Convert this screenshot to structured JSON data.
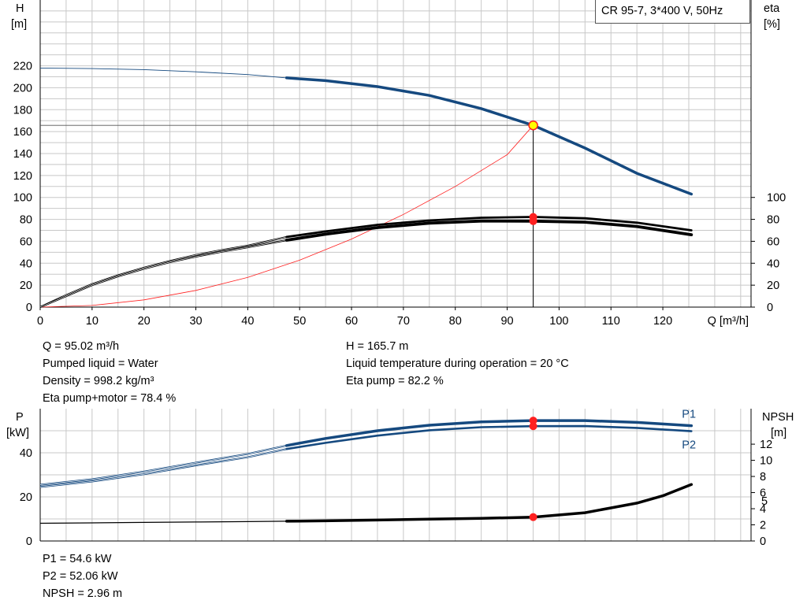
{
  "title": "CR 95-7, 3*400 V, 50Hz",
  "colors": {
    "blue": "#15497f",
    "black": "#000000",
    "red": "#ff2020",
    "grid": "#c8c8c8",
    "operating_point_fill": "#ffff00"
  },
  "info_top": {
    "left": [
      "Q = 95.02 m³/h",
      "Pumped liquid = Water",
      "Density = 998.2 kg/m³",
      "Eta pump+motor = 78.4 %"
    ],
    "right": [
      "H = 165.7 m",
      "Liquid temperature during operation = 20 °C",
      "Eta pump = 82.2 %"
    ]
  },
  "info_bottom": [
    "P1 = 54.6 kW",
    "P2 = 52.06 kW",
    "NPSH = 2.96 m"
  ],
  "chart_data": [
    {
      "type": "line",
      "name": "head-efficiency",
      "x_axis": {
        "label": "Q [m³/h]",
        "min": 0,
        "max": 137,
        "ticks": [
          0,
          10,
          20,
          30,
          40,
          50,
          60,
          70,
          80,
          90,
          100,
          110,
          120
        ]
      },
      "y_left": {
        "label_lines": [
          "H",
          "[m]"
        ],
        "min": 0,
        "max": 280,
        "ticks": [
          0,
          20,
          40,
          60,
          80,
          100,
          120,
          140,
          160,
          180,
          200,
          220
        ]
      },
      "y_right": {
        "label_lines": [
          "eta",
          "[%]"
        ],
        "min": 0,
        "max": 280,
        "ticks": [
          0,
          20,
          40,
          60,
          80,
          100
        ]
      },
      "grid": true,
      "series": [
        {
          "name": "H",
          "curve_thin": [
            [
              0,
              218
            ],
            [
              10,
              217.5
            ],
            [
              20,
              216.5
            ],
            [
              30,
              214.5
            ],
            [
              40,
              212
            ],
            [
              47.5,
              209
            ]
          ],
          "curve_thick": [
            [
              47.5,
              209
            ],
            [
              55,
              206.5
            ],
            [
              65,
              201
            ],
            [
              75,
              193
            ],
            [
              85,
              181
            ],
            [
              95,
              165.7
            ],
            [
              105,
              145
            ],
            [
              115,
              122
            ],
            [
              125.5,
              103
            ]
          ]
        },
        {
          "name": "Eta pump",
          "curve_thin": [
            [
              0,
              0
            ],
            [
              5,
              11
            ],
            [
              10,
              21
            ],
            [
              15,
              29
            ],
            [
              20,
              36
            ],
            [
              25,
              42
            ],
            [
              30,
              47.5
            ],
            [
              35,
              52
            ],
            [
              40,
              56
            ],
            [
              47.5,
              64
            ]
          ],
          "curve_thick": [
            [
              47.5,
              64
            ],
            [
              55,
              69
            ],
            [
              65,
              75
            ],
            [
              75,
              79
            ],
            [
              85,
              81.5
            ],
            [
              95,
              82.2
            ],
            [
              105,
              81
            ],
            [
              115,
              77
            ],
            [
              125.5,
              70
            ]
          ]
        },
        {
          "name": "Eta pump+motor",
          "curve_thin": [
            [
              0,
              0
            ],
            [
              5,
              10
            ],
            [
              10,
              20
            ],
            [
              15,
              28
            ],
            [
              20,
              35
            ],
            [
              25,
              41
            ],
            [
              30,
              46
            ],
            [
              35,
              50.5
            ],
            [
              40,
              54.5
            ],
            [
              47.5,
              61
            ]
          ],
          "curve_thick": [
            [
              47.5,
              61
            ],
            [
              55,
              66.5
            ],
            [
              65,
              72.5
            ],
            [
              75,
              76.5
            ],
            [
              85,
              78.5
            ],
            [
              95,
              78.4
            ],
            [
              105,
              77.5
            ],
            [
              115,
              73.5
            ],
            [
              125.5,
              66
            ]
          ]
        },
        {
          "name": "System curve",
          "points": [
            [
              0,
              0
            ],
            [
              10,
              1.5
            ],
            [
              20,
              6.6
            ],
            [
              30,
              15.2
            ],
            [
              40,
              27.1
            ],
            [
              50,
              42.8
            ],
            [
              60,
              62
            ],
            [
              70,
              84.5
            ],
            [
              80,
              110
            ],
            [
              90,
              139
            ],
            [
              95.02,
              165.7
            ]
          ]
        }
      ],
      "operating_point": {
        "Q": 95.02,
        "H": 165.7,
        "eta_pump": 82.2,
        "eta_pump_motor": 78.4
      }
    },
    {
      "type": "line",
      "name": "power-npsh",
      "x_axis": {
        "min": 0,
        "max": 137
      },
      "y_left": {
        "label_lines": [
          "P",
          "[kW]"
        ],
        "min": 0,
        "max": 60,
        "ticks": [
          0,
          20,
          40
        ]
      },
      "y_right": {
        "label_lines": [
          "NPSH",
          "[m]"
        ],
        "min": 0,
        "max": 16.4,
        "ticks": [
          0,
          2,
          4,
          6,
          8,
          10,
          12
        ],
        "minor_ticks": [
          5
        ]
      },
      "grid": true,
      "series": [
        {
          "name": "P1",
          "curve_thin": [
            [
              0,
              25.5
            ],
            [
              10,
              28
            ],
            [
              20,
              31.5
            ],
            [
              30,
              35.5
            ],
            [
              40,
              39.5
            ],
            [
              47.5,
              43.3
            ]
          ],
          "curve_thick": [
            [
              47.5,
              43.3
            ],
            [
              55,
              46.5
            ],
            [
              65,
              50
            ],
            [
              75,
              52.5
            ],
            [
              85,
              54
            ],
            [
              95,
              54.6
            ],
            [
              105,
              54.6
            ],
            [
              115,
              53.8
            ],
            [
              125.5,
              52.3
            ]
          ]
        },
        {
          "name": "P2",
          "curve_thin": [
            [
              0,
              24.5
            ],
            [
              10,
              27
            ],
            [
              20,
              30.3
            ],
            [
              30,
              34.3
            ],
            [
              40,
              38
            ],
            [
              47.5,
              41.7
            ]
          ],
          "curve_thick": [
            [
              47.5,
              41.7
            ],
            [
              55,
              44.5
            ],
            [
              65,
              47.8
            ],
            [
              75,
              50.2
            ],
            [
              85,
              51.6
            ],
            [
              95,
              52.06
            ],
            [
              105,
              52.1
            ],
            [
              115,
              51.3
            ],
            [
              125.5,
              49.8
            ]
          ]
        },
        {
          "name": "NPSH",
          "curve_thin": [
            [
              0,
              2.2
            ],
            [
              10,
              2.25
            ],
            [
              20,
              2.3
            ],
            [
              30,
              2.35
            ],
            [
              40,
              2.4
            ],
            [
              47.5,
              2.45
            ]
          ],
          "curve_thick": [
            [
              47.5,
              2.45
            ],
            [
              55,
              2.5
            ],
            [
              65,
              2.6
            ],
            [
              75,
              2.7
            ],
            [
              85,
              2.8
            ],
            [
              95,
              2.96
            ],
            [
              105,
              3.5
            ],
            [
              110,
              4.1
            ],
            [
              115,
              4.7
            ],
            [
              120,
              5.6
            ],
            [
              125.5,
              7
            ]
          ]
        }
      ],
      "operating_point": {
        "Q": 95.02,
        "P1": 54.6,
        "P2": 52.06,
        "NPSH": 2.96
      }
    }
  ]
}
